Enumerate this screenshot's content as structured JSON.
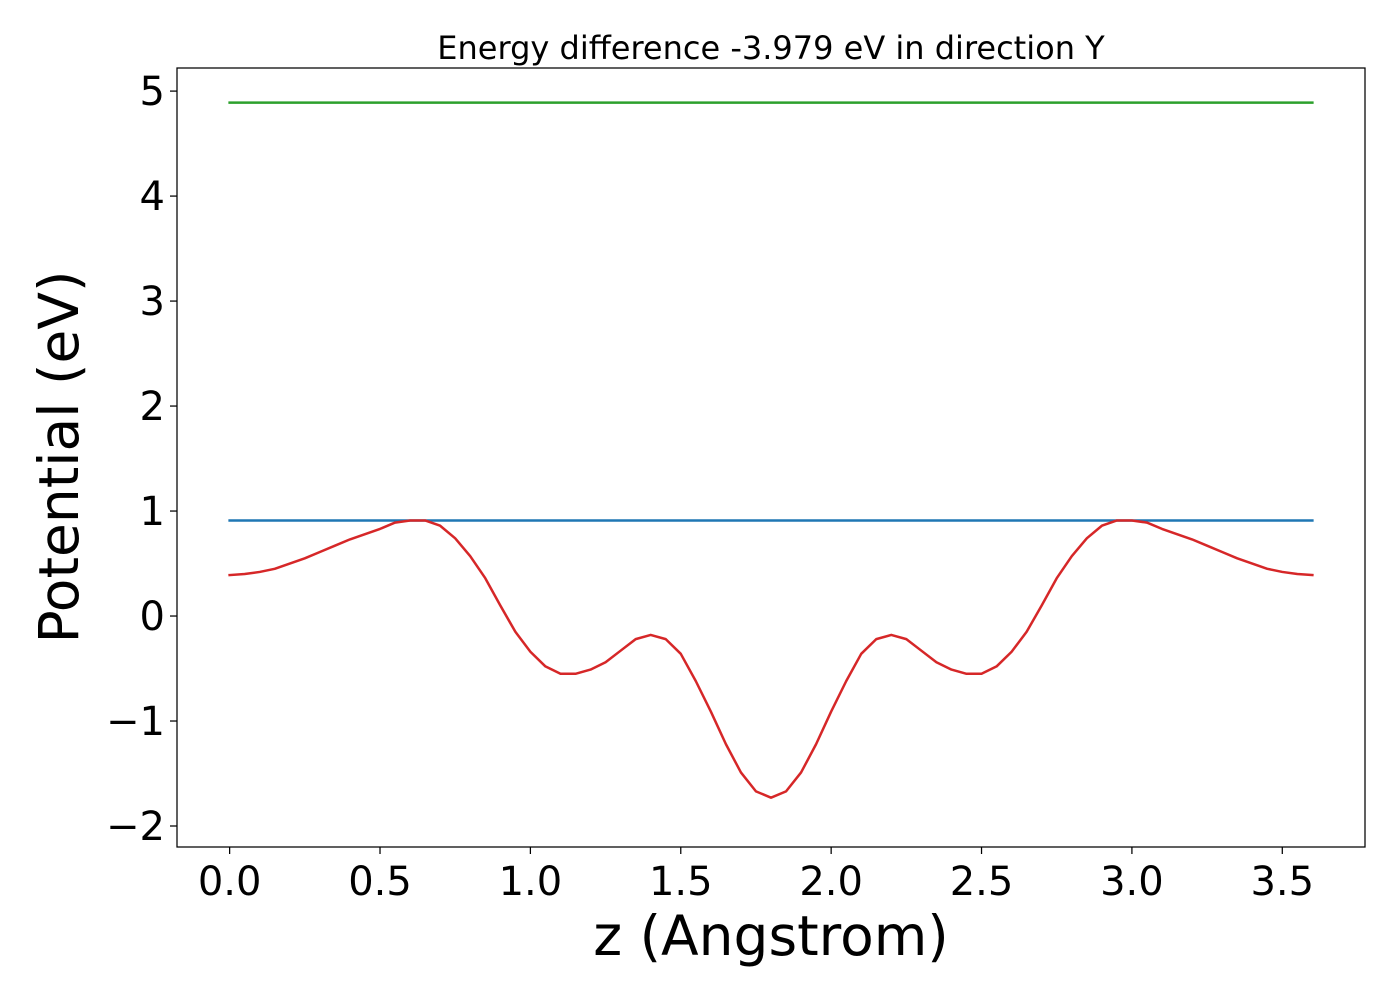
{
  "chart_data": {
    "type": "line",
    "title": "Energy difference -3.979 eV in direction Y",
    "xlabel": "z (Angstrom)",
    "ylabel": "Potential (eV)",
    "xlim": [
      -0.175,
      3.775
    ],
    "ylim": [
      -2.2,
      5.22
    ],
    "xticks": [
      0.0,
      0.5,
      1.0,
      1.5,
      2.0,
      2.5,
      3.0,
      3.5
    ],
    "xtick_labels": [
      "0.0",
      "0.5",
      "1.0",
      "1.5",
      "2.0",
      "2.5",
      "3.0",
      "3.5"
    ],
    "yticks": [
      -2,
      -1,
      0,
      1,
      2,
      3,
      4,
      5
    ],
    "ytick_labels": [
      "−2",
      "−1",
      "0",
      "1",
      "2",
      "3",
      "4",
      "5"
    ],
    "grid": false,
    "series": [
      {
        "color": "#2ca02c",
        "x": [
          0.0,
          3.6
        ],
        "y": [
          4.89,
          4.89
        ]
      },
      {
        "color": "#1f77b4",
        "x": [
          0.0,
          3.6
        ],
        "y": [
          0.91,
          0.91
        ]
      },
      {
        "color": "#d62728",
        "x": [
          0.0,
          0.05,
          0.1,
          0.15,
          0.2,
          0.25,
          0.3,
          0.35,
          0.4,
          0.45,
          0.5,
          0.55,
          0.6,
          0.65,
          0.7,
          0.75,
          0.8,
          0.85,
          0.9,
          0.95,
          1.0,
          1.05,
          1.1,
          1.15,
          1.2,
          1.25,
          1.3,
          1.35,
          1.4,
          1.45,
          1.5,
          1.55,
          1.6,
          1.65,
          1.7,
          1.75,
          1.8,
          1.85,
          1.9,
          1.95,
          2.0,
          2.05,
          2.1,
          2.15,
          2.2,
          2.25,
          2.3,
          2.35,
          2.4,
          2.45,
          2.5,
          2.55,
          2.6,
          2.65,
          2.7,
          2.75,
          2.8,
          2.85,
          2.9,
          2.95,
          3.0,
          3.05,
          3.1,
          3.15,
          3.2,
          3.25,
          3.3,
          3.35,
          3.4,
          3.45,
          3.5,
          3.55,
          3.6
        ],
        "y": [
          0.39,
          0.4,
          0.42,
          0.45,
          0.5,
          0.55,
          0.61,
          0.67,
          0.73,
          0.78,
          0.83,
          0.89,
          0.91,
          0.91,
          0.86,
          0.74,
          0.57,
          0.36,
          0.1,
          -0.15,
          -0.34,
          -0.48,
          -0.55,
          -0.55,
          -0.51,
          -0.44,
          -0.33,
          -0.22,
          -0.18,
          -0.22,
          -0.36,
          -0.62,
          -0.91,
          -1.22,
          -1.49,
          -1.67,
          -1.73,
          -1.67,
          -1.49,
          -1.22,
          -0.91,
          -0.62,
          -0.36,
          -0.22,
          -0.18,
          -0.22,
          -0.33,
          -0.44,
          -0.51,
          -0.55,
          -0.55,
          -0.48,
          -0.34,
          -0.15,
          0.1,
          0.36,
          0.57,
          0.74,
          0.86,
          0.91,
          0.91,
          0.89,
          0.83,
          0.78,
          0.73,
          0.67,
          0.61,
          0.55,
          0.5,
          0.45,
          0.42,
          0.4,
          0.39
        ]
      }
    ]
  }
}
